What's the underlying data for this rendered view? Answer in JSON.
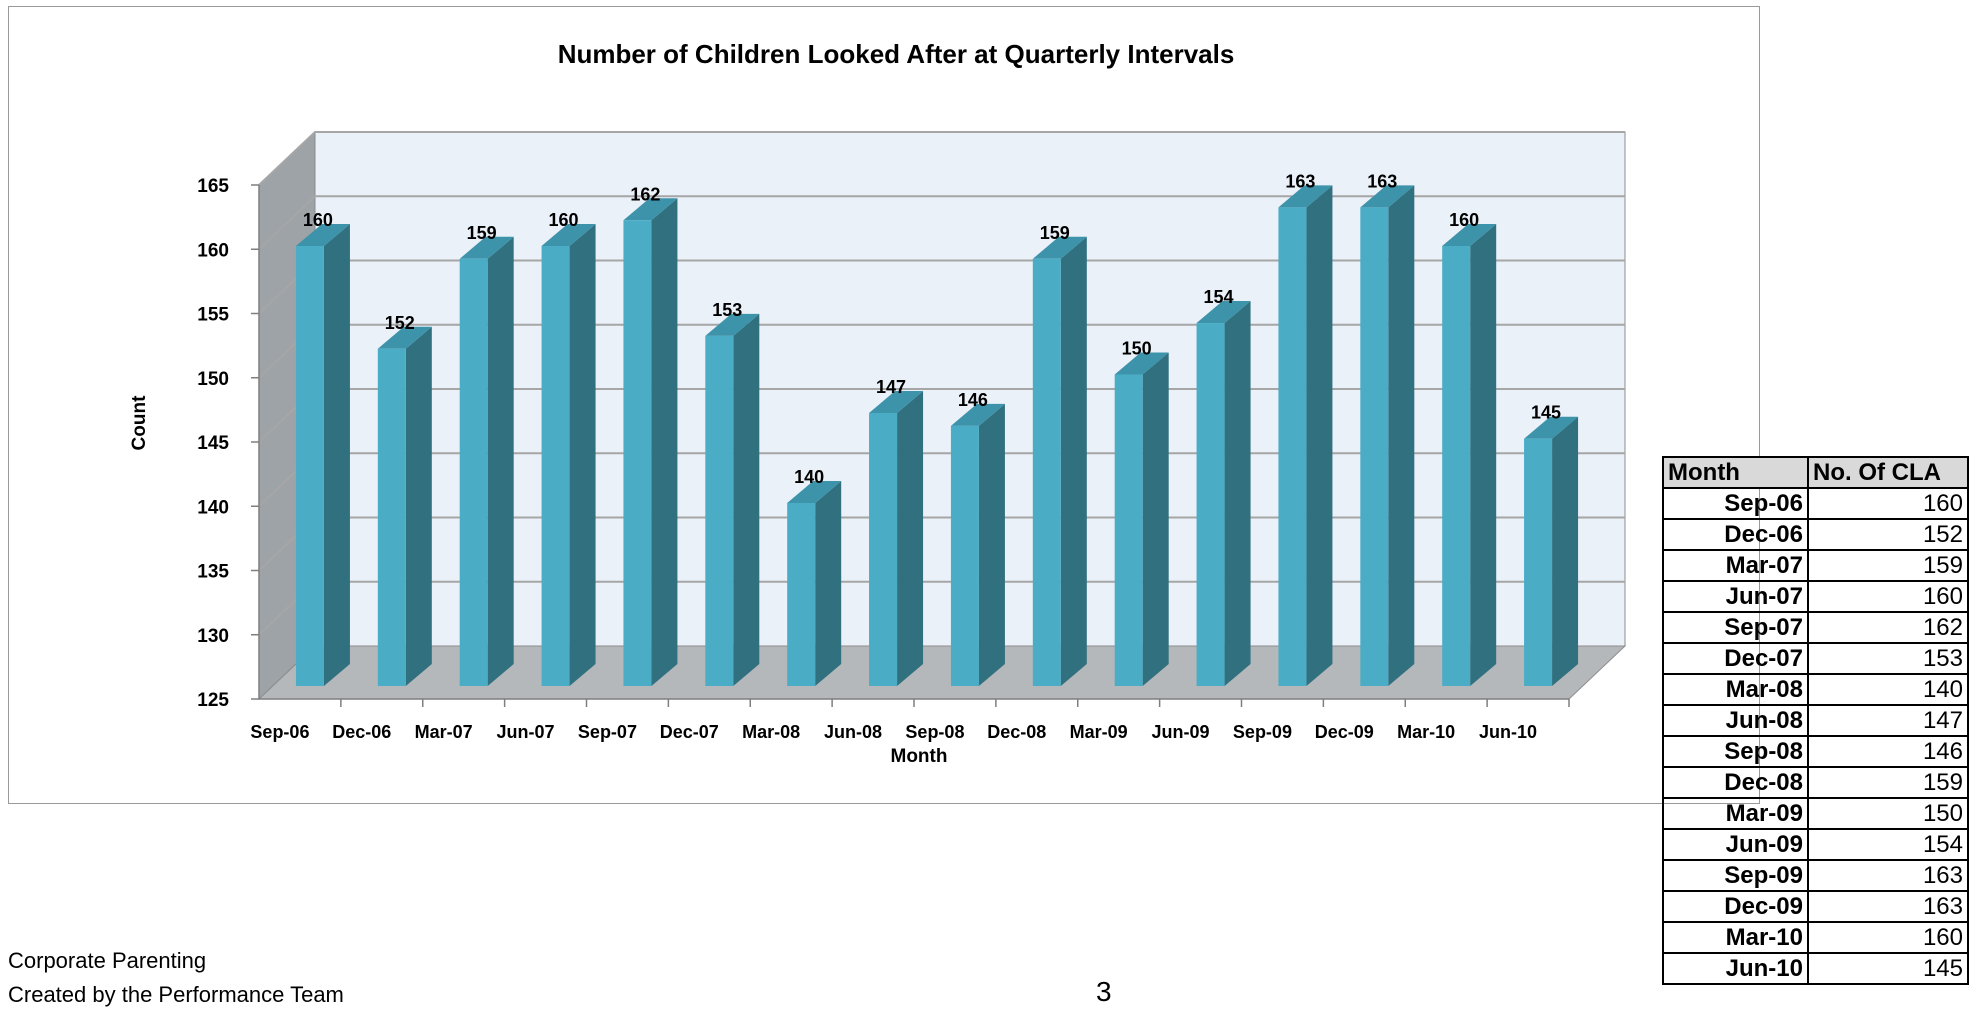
{
  "chart_data": {
    "type": "bar",
    "title": "Number of Children Looked After at Quarterly Intervals",
    "xlabel": "Month",
    "ylabel": "Count",
    "ylim": [
      125,
      165
    ],
    "yticks": [
      125,
      130,
      135,
      140,
      145,
      150,
      155,
      160,
      165
    ],
    "categories": [
      "Sep-06",
      "Dec-06",
      "Mar-07",
      "Jun-07",
      "Sep-07",
      "Dec-07",
      "Mar-08",
      "Jun-08",
      "Sep-08",
      "Dec-08",
      "Mar-09",
      "Jun-09",
      "Sep-09",
      "Dec-09",
      "Mar-10",
      "Jun-10"
    ],
    "values": [
      160,
      152,
      159,
      160,
      162,
      153,
      140,
      147,
      146,
      159,
      150,
      154,
      163,
      163,
      160,
      145
    ],
    "grid": true,
    "style": "3d-column",
    "colors": {
      "bar_front": "#4bacc6",
      "bar_side": "#31707f",
      "bar_top": "#3c93aa",
      "back_wall": "#eaf1f8",
      "side_wall": "#9ea3a8",
      "floor": "#b5b8bb",
      "gridline": "#a6a6a6"
    }
  },
  "table": {
    "headers": [
      "Month",
      "No. Of CLA"
    ],
    "rows": [
      [
        "Sep-06",
        "160"
      ],
      [
        "Dec-06",
        "152"
      ],
      [
        "Mar-07",
        "159"
      ],
      [
        "Jun-07",
        "160"
      ],
      [
        "Sep-07",
        "162"
      ],
      [
        "Dec-07",
        "153"
      ],
      [
        "Mar-08",
        "140"
      ],
      [
        "Jun-08",
        "147"
      ],
      [
        "Sep-08",
        "146"
      ],
      [
        "Dec-08",
        "159"
      ],
      [
        "Mar-09",
        "150"
      ],
      [
        "Jun-09",
        "154"
      ],
      [
        "Sep-09",
        "163"
      ],
      [
        "Dec-09",
        "163"
      ],
      [
        "Mar-10",
        "160"
      ],
      [
        "Jun-10",
        "145"
      ]
    ]
  },
  "footer": {
    "line1": "Corporate Parenting",
    "line2": "Created by the Performance Team",
    "page_number": "3"
  }
}
